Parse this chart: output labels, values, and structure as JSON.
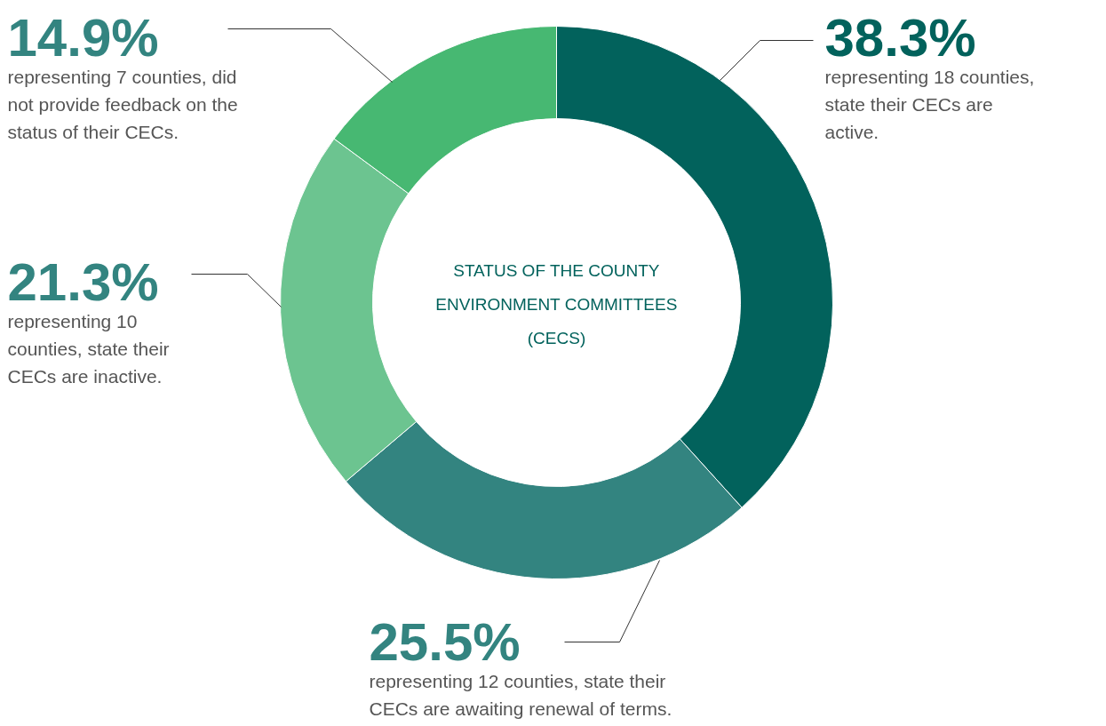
{
  "chart_data": {
    "type": "donut",
    "title": "STATUS OF THE COUNTY ENVIRONMENT COMMITTEES (CECS)",
    "categories": [
      "representing 18 counties, state their CECs are active.",
      "representing 12 counties, state their CECs are awaiting renewal of terms.",
      "representing 10 counties, state their CECs are inactive.",
      "representing 7 counties, did not provide feedback on the status of their CECs."
    ],
    "values": [
      38.3,
      25.5,
      21.3,
      14.9
    ],
    "colors": [
      "#02625c",
      "#338480",
      "#6cc490",
      "#47b872"
    ],
    "value_labels": [
      "38.3%",
      "25.5%",
      "21.3%",
      "14.9%"
    ]
  }
}
